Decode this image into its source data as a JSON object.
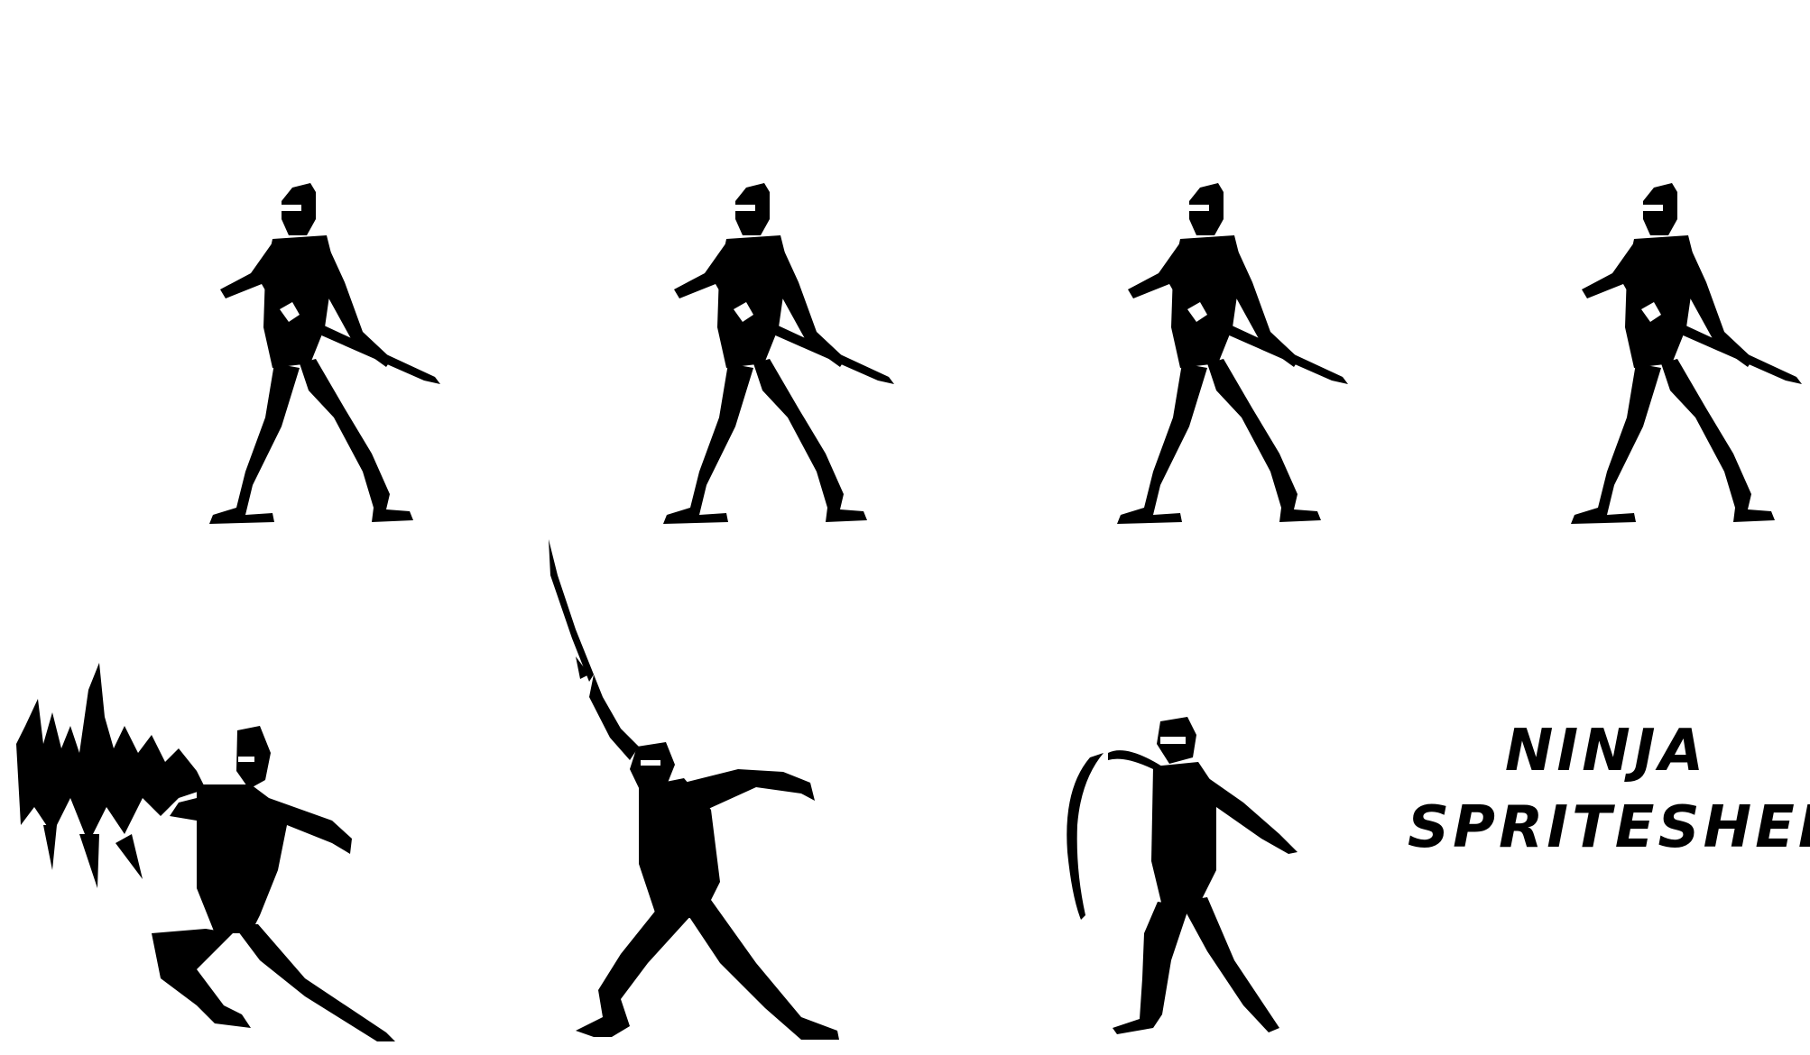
{
  "sheet": {
    "background": "#ffffff",
    "ink": "#000000",
    "title_line1": "NINJA",
    "title_line2": "SPRITESHEET",
    "frames": [
      {
        "pose": "idle-stance-sword-low"
      },
      {
        "pose": "idle-stance-sword-low"
      },
      {
        "pose": "idle-stance-sword-low"
      },
      {
        "pose": "idle-stance-sword-low"
      },
      {
        "pose": "dash-attack-smear"
      },
      {
        "pose": "overhead-sword-raise"
      },
      {
        "pose": "slash-arc-follow-through"
      }
    ]
  }
}
